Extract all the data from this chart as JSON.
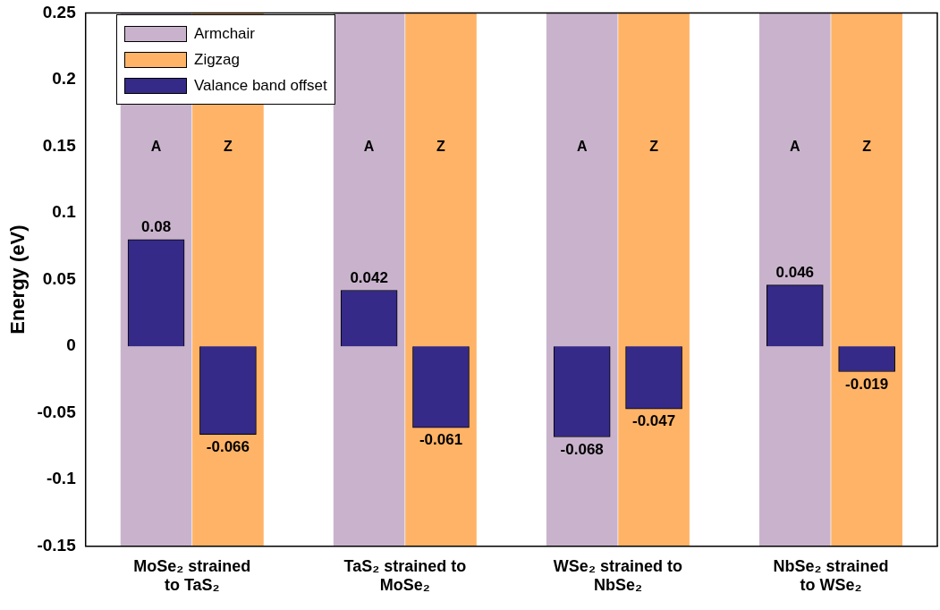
{
  "chart_data": {
    "type": "bar",
    "ylabel": "Energy (eV)",
    "categories": [
      "MoSe₂ strained to TaS₂",
      "TaS₂ strained to MoSe₂",
      "WSe₂ strained to NbSe₂",
      "NbSe₂ strained to WSe₂"
    ],
    "series": [
      {
        "name": "Armchair",
        "color": "#c9b3cc",
        "base": [
          -0.15,
          -0.15,
          -0.15,
          -0.15
        ],
        "values": [
          0.4,
          0.4,
          0.4,
          0.4
        ],
        "value_labels": [
          "A",
          "A",
          "A",
          "A"
        ]
      },
      {
        "name": "Zigzag",
        "color": "#ffb366",
        "base": [
          -0.15,
          -0.15,
          -0.15,
          -0.15
        ],
        "values": [
          0.4,
          0.4,
          0.4,
          0.4
        ],
        "value_labels": [
          "Z",
          "Z",
          "Z",
          "Z"
        ]
      },
      {
        "name": "Valance band offset",
        "color": "#352a87",
        "values": [
          0.08,
          0.042,
          -0.068,
          0.046
        ],
        "value_labels": [
          "0.08",
          "0.042",
          "-0.068",
          "0.046"
        ]
      },
      {
        "color": "#352a87",
        "values": [
          -0.066,
          -0.061,
          -0.047,
          -0.019
        ],
        "value_labels": [
          "-0.066",
          "-0.061",
          "-0.047",
          "-0.019"
        ]
      }
    ],
    "ylim": [
      -0.15,
      0.25
    ],
    "yticks": [
      -0.15,
      -0.1,
      -0.05,
      0,
      0.05,
      0.1,
      0.15,
      0.2,
      0.25
    ],
    "legend": "top left"
  }
}
